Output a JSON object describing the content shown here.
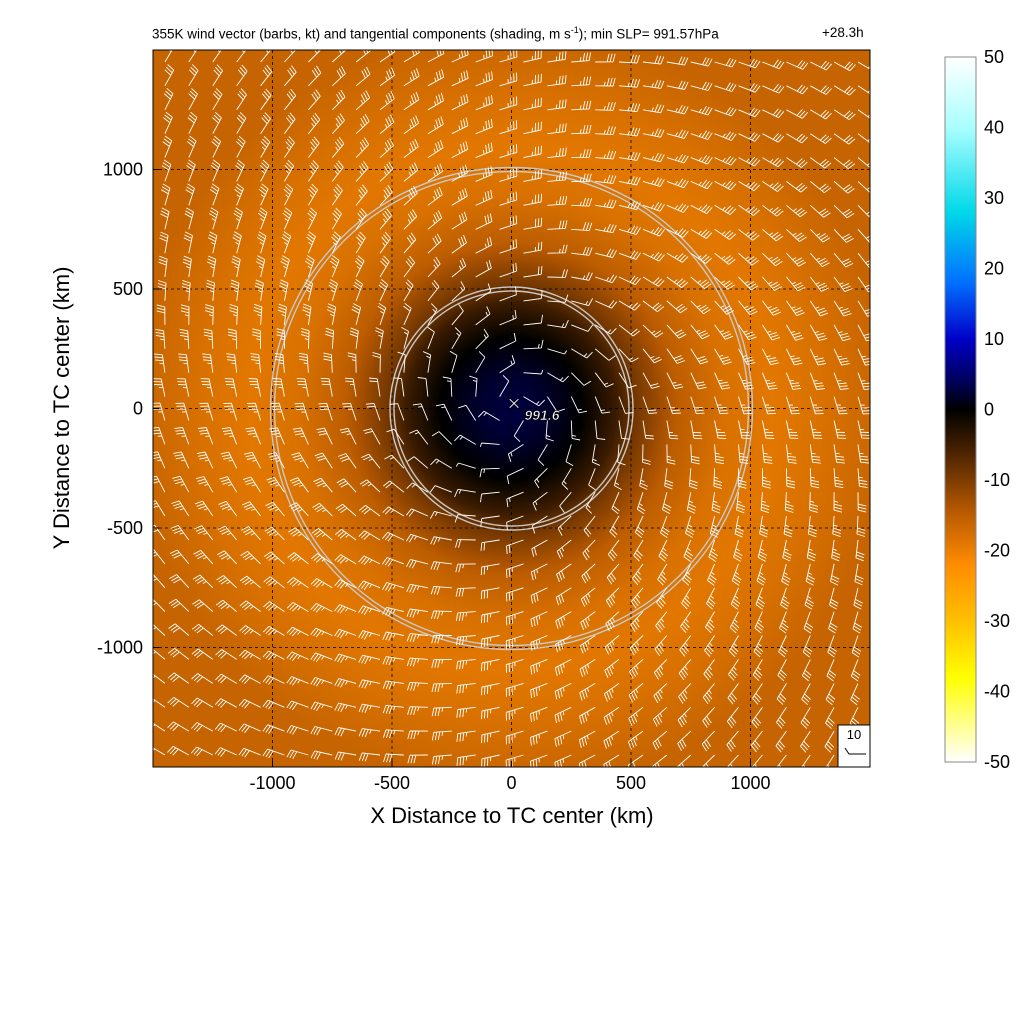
{
  "title": {
    "main_prefix": "355K wind vector (barbs, kt) and tangential components (shading, m s",
    "main_exp": "-1",
    "main_suffix": "); min SLP= 991.57hPa",
    "time": "+28.3h"
  },
  "center_marker": {
    "symbol": "×",
    "label": "991.6"
  },
  "reference_barb": {
    "label": "10"
  },
  "chart_data": {
    "type": "heatmap",
    "xlabel": "X Distance to TC center (km)",
    "ylabel": "Y Distance to TC center (km)",
    "xlim": [
      -1500,
      1500
    ],
    "ylim": [
      -1500,
      1500
    ],
    "xticks": [
      -1000,
      -500,
      0,
      500,
      1000
    ],
    "yticks": [
      -1000,
      -500,
      0,
      500,
      1000
    ],
    "xtick_labels": [
      "-1000",
      "-500",
      "0",
      "500",
      "1000"
    ],
    "ytick_labels": [
      "-1000",
      "-500",
      "0",
      "500",
      "1000"
    ],
    "grid": "dashed",
    "colorbar": {
      "min": -50,
      "max": 50,
      "ticks": [
        50,
        40,
        30,
        20,
        10,
        0,
        -10,
        -20,
        -30,
        -40,
        -50
      ],
      "tick_labels": [
        "50",
        "40",
        "30",
        "20",
        "10",
        "0",
        "-10",
        "-20",
        "-30",
        "-40",
        "-50"
      ],
      "colors": [
        "#ffffff",
        "#00d8e8",
        "#0000c8",
        "#000000",
        "#ff8c00",
        "#ffff00",
        "#ffffff"
      ]
    },
    "field": {
      "variable": "tangential wind (m s-1)",
      "radial_profile_km": [
        0,
        150,
        300,
        450,
        520,
        700,
        900,
        1100,
        1300,
        1600
      ],
      "radial_profile_values": [
        3,
        2,
        0,
        -5,
        -9,
        -15,
        -18,
        -19,
        -18,
        -16
      ]
    },
    "circles_km": [
      500,
      1000
    ],
    "min_slp_hpa": 991.57,
    "barb_grid_spacing_km": 100,
    "barb_units": "kt"
  }
}
